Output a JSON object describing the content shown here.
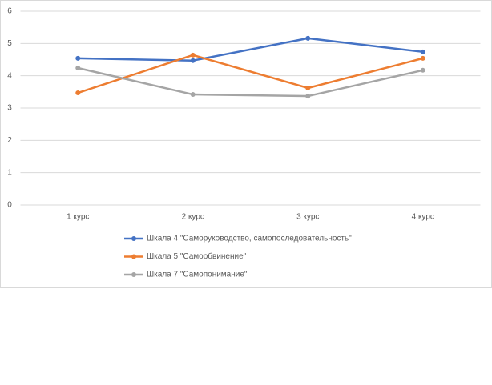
{
  "chart_data": {
    "type": "line",
    "categories": [
      "1 курс",
      "2 курс",
      "3 курс",
      "4 курс"
    ],
    "series": [
      {
        "name": "Шкала 4 \"Саморуководство, самопоследовательность\"",
        "color": "#4472c4",
        "values": [
          4.54,
          4.47,
          5.16,
          4.74
        ]
      },
      {
        "name": "Шкала 5 \"Самообвинение\"",
        "color": "#ed7d31",
        "values": [
          3.47,
          4.64,
          3.62,
          4.54
        ]
      },
      {
        "name": "Шкала 7 \"Самопонимание\"",
        "color": "#a5a5a5",
        "values": [
          4.24,
          3.42,
          3.37,
          4.17
        ]
      }
    ],
    "ylim": [
      0,
      6
    ],
    "yticks": [
      0,
      1,
      2,
      3,
      4,
      5,
      6
    ],
    "grid": true,
    "legend": "bottom"
  }
}
